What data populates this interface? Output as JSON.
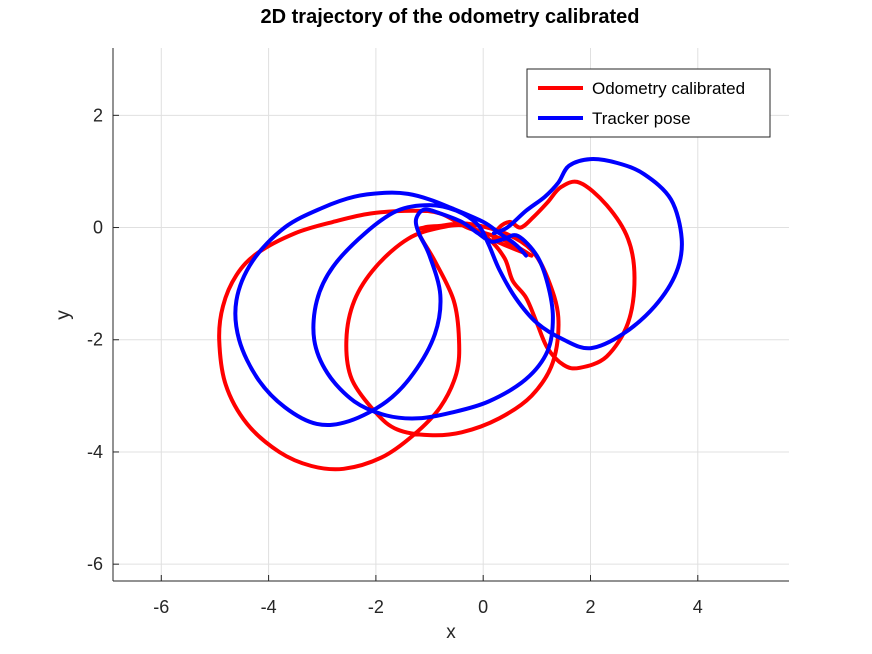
{
  "chart_data": {
    "type": "line",
    "title": "2D trajectory of the odometry calibrated",
    "xlabel": "x",
    "ylabel": "y",
    "xlim": [
      -6.9,
      5.7
    ],
    "ylim": [
      -6.3,
      3.2
    ],
    "xticks": [
      -6,
      -4,
      -2,
      0,
      2,
      4
    ],
    "yticks": [
      -6,
      -4,
      -2,
      0,
      2
    ],
    "grid": true,
    "legend_position": "top-right",
    "series": [
      {
        "name": "Odometry calibrated",
        "color": "#ff0000",
        "points": [
          [
            0.9,
            -0.5
          ],
          [
            0.55,
            -0.3
          ],
          [
            0.2,
            -0.15
          ],
          [
            -0.3,
            0.0
          ],
          [
            -0.8,
            0.25
          ],
          [
            -1.3,
            0.3
          ],
          [
            -2.1,
            0.25
          ],
          [
            -2.8,
            0.1
          ],
          [
            -3.5,
            -0.1
          ],
          [
            -4.2,
            -0.45
          ],
          [
            -4.6,
            -0.85
          ],
          [
            -4.85,
            -1.4
          ],
          [
            -4.92,
            -2.0
          ],
          [
            -4.8,
            -2.8
          ],
          [
            -4.4,
            -3.5
          ],
          [
            -3.8,
            -4.0
          ],
          [
            -3.2,
            -4.25
          ],
          [
            -2.6,
            -4.3
          ],
          [
            -1.9,
            -4.1
          ],
          [
            -1.3,
            -3.7
          ],
          [
            -0.8,
            -3.2
          ],
          [
            -0.5,
            -2.6
          ],
          [
            -0.45,
            -2.0
          ],
          [
            -0.55,
            -1.3
          ],
          [
            -0.9,
            -0.6
          ],
          [
            -1.2,
            -0.1
          ],
          [
            -1.1,
            0.0
          ],
          [
            -0.8,
            0.03
          ],
          [
            -0.3,
            0.07
          ],
          [
            0.4,
            -0.1
          ],
          [
            0.9,
            -0.4
          ],
          [
            1.2,
            -0.9
          ],
          [
            1.4,
            -1.6
          ],
          [
            1.3,
            -2.4
          ],
          [
            0.9,
            -3.0
          ],
          [
            0.3,
            -3.4
          ],
          [
            -0.4,
            -3.65
          ],
          [
            -1.0,
            -3.7
          ],
          [
            -1.6,
            -3.6
          ],
          [
            -2.0,
            -3.3
          ],
          [
            -2.45,
            -2.7
          ],
          [
            -2.55,
            -2.0
          ],
          [
            -2.4,
            -1.3
          ],
          [
            -2.0,
            -0.7
          ],
          [
            -1.4,
            -0.2
          ],
          [
            -0.8,
            0.0
          ],
          [
            -0.3,
            0.03
          ],
          [
            0.1,
            -0.2
          ],
          [
            0.4,
            -0.55
          ],
          [
            0.55,
            -0.95
          ],
          [
            0.8,
            -1.25
          ],
          [
            1.0,
            -1.7
          ],
          [
            1.2,
            -2.15
          ],
          [
            1.5,
            -2.45
          ],
          [
            1.8,
            -2.5
          ],
          [
            2.3,
            -2.3
          ],
          [
            2.7,
            -1.7
          ],
          [
            2.82,
            -0.9
          ],
          [
            2.7,
            -0.2
          ],
          [
            2.3,
            0.4
          ],
          [
            1.8,
            0.8
          ],
          [
            1.45,
            0.72
          ],
          [
            1.2,
            0.45
          ],
          [
            0.95,
            0.2
          ],
          [
            0.7,
            0.0
          ],
          [
            0.5,
            0.1
          ],
          [
            0.3,
            0.0
          ],
          [
            0.2,
            -0.2
          ],
          [
            0.5,
            -0.35
          ],
          [
            0.9,
            -0.5
          ]
        ]
      },
      {
        "name": "Tracker pose",
        "color": "#0000ff",
        "points": [
          [
            0.8,
            -0.5
          ],
          [
            0.6,
            -0.3
          ],
          [
            0.3,
            -0.1
          ],
          [
            0.0,
            0.1
          ],
          [
            -0.6,
            0.35
          ],
          [
            -1.0,
            0.5
          ],
          [
            -1.4,
            0.6
          ],
          [
            -1.8,
            0.62
          ],
          [
            -2.4,
            0.55
          ],
          [
            -3.0,
            0.35
          ],
          [
            -3.7,
            0.0
          ],
          [
            -4.3,
            -0.6
          ],
          [
            -4.6,
            -1.3
          ],
          [
            -4.55,
            -2.0
          ],
          [
            -4.2,
            -2.7
          ],
          [
            -3.7,
            -3.2
          ],
          [
            -3.1,
            -3.5
          ],
          [
            -2.5,
            -3.45
          ],
          [
            -1.8,
            -3.1
          ],
          [
            -1.3,
            -2.6
          ],
          [
            -0.9,
            -1.9
          ],
          [
            -0.8,
            -1.2
          ],
          [
            -1.0,
            -0.5
          ],
          [
            -1.2,
            -0.1
          ],
          [
            -1.25,
            0.15
          ],
          [
            -1.1,
            0.32
          ],
          [
            -0.8,
            0.25
          ],
          [
            -0.4,
            0.1
          ],
          [
            -0.1,
            -0.1
          ],
          [
            0.15,
            -0.25
          ],
          [
            0.4,
            -0.2
          ],
          [
            0.65,
            -0.15
          ],
          [
            1.0,
            -0.5
          ],
          [
            1.2,
            -1.0
          ],
          [
            1.3,
            -1.6
          ],
          [
            1.2,
            -2.2
          ],
          [
            0.8,
            -2.7
          ],
          [
            0.1,
            -3.1
          ],
          [
            -0.6,
            -3.3
          ],
          [
            -1.2,
            -3.4
          ],
          [
            -1.8,
            -3.35
          ],
          [
            -2.4,
            -3.1
          ],
          [
            -2.9,
            -2.6
          ],
          [
            -3.15,
            -2.0
          ],
          [
            -3.1,
            -1.3
          ],
          [
            -2.8,
            -0.7
          ],
          [
            -2.2,
            -0.1
          ],
          [
            -1.6,
            0.3
          ],
          [
            -1.0,
            0.4
          ],
          [
            -0.5,
            0.3
          ],
          [
            -0.1,
            0.05
          ],
          [
            0.1,
            -0.3
          ],
          [
            0.3,
            -0.75
          ],
          [
            0.6,
            -1.25
          ],
          [
            1.0,
            -1.7
          ],
          [
            1.5,
            -2.0
          ],
          [
            2.0,
            -2.15
          ],
          [
            2.6,
            -1.9
          ],
          [
            3.2,
            -1.4
          ],
          [
            3.6,
            -0.8
          ],
          [
            3.7,
            -0.2
          ],
          [
            3.5,
            0.5
          ],
          [
            3.0,
            0.95
          ],
          [
            2.5,
            1.15
          ],
          [
            2.0,
            1.22
          ],
          [
            1.6,
            1.1
          ],
          [
            1.4,
            0.8
          ],
          [
            1.15,
            0.55
          ],
          [
            0.8,
            0.3
          ],
          [
            0.45,
            0.0
          ],
          [
            0.2,
            -0.1
          ]
        ]
      }
    ]
  }
}
